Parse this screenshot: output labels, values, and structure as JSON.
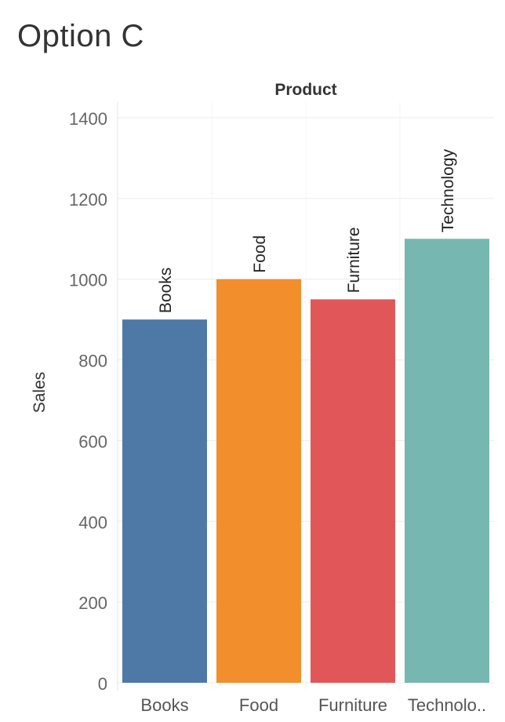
{
  "page": {
    "title": "Option C"
  },
  "chart_data": {
    "type": "bar",
    "title": "",
    "column_header": "Product",
    "xlabel": "",
    "ylabel": "Sales",
    "categories": [
      "Books",
      "Food",
      "Furniture",
      "Technology"
    ],
    "tick_labels": [
      "Books",
      "Food",
      "Furniture",
      "Technolo.."
    ],
    "values": [
      900,
      1000,
      950,
      1100
    ],
    "colors": [
      "#4e79a7",
      "#f28e2b",
      "#e15759",
      "#76b7b2"
    ],
    "ylim": [
      0,
      1400
    ],
    "yticks": [
      0,
      200,
      400,
      600,
      800,
      1000,
      1200,
      1400
    ],
    "grid": true,
    "legend": "none",
    "bar_labels": true
  }
}
